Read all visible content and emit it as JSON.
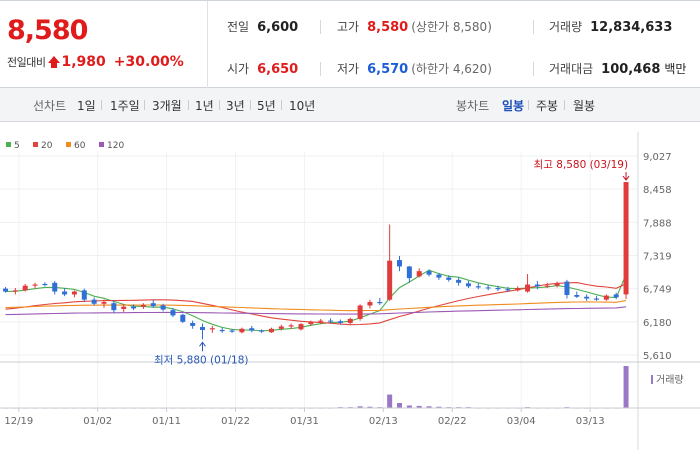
{
  "quote": {
    "price": "8,580",
    "change_label": "전일대비",
    "change": "1,980",
    "change_pct": "+30.00%",
    "stats": {
      "prev_close": {
        "label": "전일",
        "value": "6,600"
      },
      "high": {
        "label": "고가",
        "value": "8,580",
        "sub": "(상한가 8,580)"
      },
      "volume": {
        "label": "거래량",
        "value": "12,834,633"
      },
      "open": {
        "label": "시가",
        "value": "6,650"
      },
      "low": {
        "label": "저가",
        "value": "6,570",
        "sub": "(하한가 4,620)"
      },
      "turnover": {
        "label": "거래대금",
        "value": "100,468",
        "unit": "백만"
      }
    }
  },
  "period_tabs": {
    "label": "선차트",
    "items": [
      "1일",
      "1주일",
      "3개월",
      "1년",
      "3년",
      "5년",
      "10년"
    ]
  },
  "candle_tabs": {
    "label": "봉차트",
    "items": [
      "일봉",
      "주봉",
      "월봉"
    ],
    "active": "일봉"
  },
  "colors": {
    "up": "#e03c3c",
    "down": "#2f6fd6",
    "ma5": "#4caf50",
    "ma20": "#e0453c",
    "ma60": "#f08c1e",
    "ma120": "#9b59b6",
    "price": "#e01b1b"
  },
  "chart_data": {
    "type": "candlestick",
    "legend": [
      "5",
      "20",
      "60",
      "120"
    ],
    "legend_position": "top-left",
    "y_ticks": [
      "9,027",
      "8,458",
      "7,888",
      "7,319",
      "6,749",
      "6,180",
      "5,610"
    ],
    "ylim": [
      5610,
      9027
    ],
    "x_labels": [
      "12/19",
      "01/02",
      "01/11",
      "01/22",
      "01/31",
      "02/13",
      "02/22",
      "03/04",
      "03/13"
    ],
    "x_label_days": [
      1,
      9,
      16,
      23,
      30,
      38,
      45,
      52,
      59
    ],
    "annotations": {
      "high": "최고 8,580 (03/19)",
      "low": "최저 5,880 (01/18)"
    },
    "high_day": 63,
    "low_day": 20,
    "volume_label": "거래량",
    "candles": [
      [
        6750,
        6780,
        6680,
        6700
      ],
      [
        6700,
        6760,
        6650,
        6720
      ],
      [
        6720,
        6830,
        6700,
        6800
      ],
      [
        6800,
        6850,
        6750,
        6820
      ],
      [
        6830,
        6860,
        6790,
        6810
      ],
      [
        6850,
        6880,
        6650,
        6700
      ],
      [
        6700,
        6760,
        6620,
        6650
      ],
      [
        6650,
        6720,
        6600,
        6700
      ],
      [
        6720,
        6750,
        6520,
        6560
      ],
      [
        6560,
        6600,
        6460,
        6490
      ],
      [
        6490,
        6560,
        6420,
        6520
      ],
      [
        6500,
        6550,
        6330,
        6380
      ],
      [
        6400,
        6480,
        6350,
        6440
      ],
      [
        6440,
        6480,
        6380,
        6410
      ],
      [
        6440,
        6500,
        6400,
        6470
      ],
      [
        6500,
        6560,
        6420,
        6450
      ],
      [
        6460,
        6490,
        6360,
        6390
      ],
      [
        6380,
        6420,
        6260,
        6290
      ],
      [
        6300,
        6320,
        6160,
        6180
      ],
      [
        6160,
        6200,
        6060,
        6110
      ],
      [
        6090,
        6150,
        5880,
        6040
      ],
      [
        6050,
        6110,
        5990,
        6070
      ],
      [
        6040,
        6080,
        5990,
        6020
      ],
      [
        6030,
        6060,
        5990,
        6010
      ],
      [
        6000,
        6080,
        5980,
        6060
      ],
      [
        6070,
        6110,
        6000,
        6030
      ],
      [
        6030,
        6050,
        5990,
        6010
      ],
      [
        6000,
        6080,
        5990,
        6060
      ],
      [
        6060,
        6130,
        6030,
        6100
      ],
      [
        6100,
        6150,
        6060,
        6120
      ],
      [
        6050,
        6160,
        6030,
        6140
      ],
      [
        6140,
        6200,
        6110,
        6180
      ],
      [
        6180,
        6230,
        6140,
        6200
      ],
      [
        6200,
        6240,
        6150,
        6190
      ],
      [
        6190,
        6220,
        6130,
        6160
      ],
      [
        6160,
        6250,
        6140,
        6230
      ],
      [
        6230,
        6480,
        6200,
        6460
      ],
      [
        6460,
        6560,
        6410,
        6520
      ],
      [
        6520,
        6590,
        6470,
        6500
      ],
      [
        6560,
        7850,
        6540,
        7230
      ],
      [
        7240,
        7310,
        7050,
        7130
      ],
      [
        7130,
        7140,
        6850,
        6930
      ],
      [
        6960,
        7100,
        6940,
        7050
      ],
      [
        7050,
        7080,
        6960,
        6990
      ],
      [
        6990,
        7020,
        6900,
        6940
      ],
      [
        6940,
        6980,
        6870,
        6900
      ],
      [
        6900,
        6940,
        6800,
        6850
      ],
      [
        6840,
        6880,
        6760,
        6790
      ],
      [
        6790,
        6840,
        6740,
        6770
      ],
      [
        6770,
        6810,
        6720,
        6760
      ],
      [
        6760,
        6800,
        6710,
        6740
      ],
      [
        6740,
        6780,
        6690,
        6720
      ],
      [
        6720,
        6790,
        6700,
        6760
      ],
      [
        6700,
        7000,
        6680,
        6820
      ],
      [
        6820,
        6880,
        6740,
        6790
      ],
      [
        6790,
        6850,
        6760,
        6800
      ],
      [
        6800,
        6870,
        6770,
        6840
      ],
      [
        6870,
        6900,
        6580,
        6640
      ],
      [
        6640,
        6700,
        6590,
        6610
      ],
      [
        6610,
        6650,
        6540,
        6580
      ],
      [
        6580,
        6620,
        6540,
        6560
      ],
      [
        6560,
        6650,
        6540,
        6630
      ],
      [
        6650,
        6680,
        6570,
        6600
      ],
      [
        6650,
        8580,
        6570,
        8580
      ]
    ],
    "volumes": [
      0.01,
      0.01,
      0.01,
      0.01,
      0.01,
      0.01,
      0.01,
      0.01,
      0.01,
      0.01,
      0.01,
      0.01,
      0.01,
      0.01,
      0.01,
      0.01,
      0.01,
      0.01,
      0.01,
      0.01,
      0.01,
      0.01,
      0.01,
      0.01,
      0.01,
      0.01,
      0.01,
      0.01,
      0.01,
      0.01,
      0.01,
      0.01,
      0.01,
      0.01,
      0.02,
      0.02,
      0.04,
      0.03,
      0.02,
      0.32,
      0.12,
      0.06,
      0.05,
      0.04,
      0.03,
      0.02,
      0.02,
      0.02,
      0.01,
      0.01,
      0.01,
      0.01,
      0.01,
      0.02,
      0.01,
      0.01,
      0.01,
      0.02,
      0.01,
      0.01,
      0.01,
      0.01,
      0.01,
      1.0
    ]
  }
}
